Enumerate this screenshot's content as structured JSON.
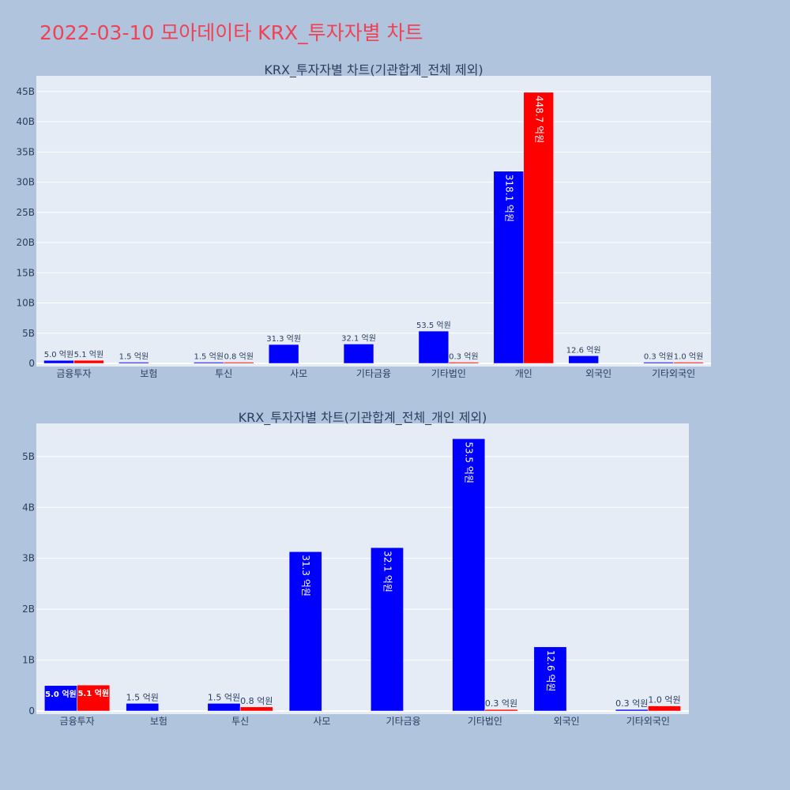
{
  "page": {
    "title": "2022-03-10 모아데이타 KRX_투자자별 차트"
  },
  "colors": {
    "background": "#b0c4de",
    "plot_background": "#e5ecf6",
    "title_color": "#ef4255",
    "buy_color": "#0000ff",
    "sell_color": "#ff0000"
  },
  "chart_data": [
    {
      "type": "bar",
      "title": "KRX_투자자별 차트(기관합계_전체 제외)",
      "categories": [
        "금융투자",
        "보험",
        "투신",
        "사모",
        "기타금융",
        "기타법인",
        "개인",
        "외국인",
        "기타외국인"
      ],
      "series": [
        {
          "color": "#0000ff",
          "values": [
            0.5,
            0.15,
            0.15,
            3.13,
            3.21,
            5.35,
            31.81,
            1.26,
            0.03
          ],
          "labels": [
            "5.0 억원",
            "1.5 억원",
            "1.5 억원",
            "31.3 억원",
            "32.1 억원",
            "53.5 억원",
            "318.1 억원",
            "12.6 억원",
            "0.3 억원"
          ]
        },
        {
          "color": "#ff0000",
          "values": [
            0.51,
            null,
            0.08,
            null,
            null,
            0.03,
            44.87,
            null,
            0.1
          ],
          "labels": [
            "5.1 억원",
            null,
            "0.8 억원",
            null,
            null,
            "0.3 억원",
            "448.7 억원",
            null,
            "1.0 억원"
          ]
        }
      ],
      "yticks": [
        "0",
        "5B",
        "10B",
        "15B",
        "20B",
        "25B",
        "30B",
        "35B",
        "40B",
        "45B"
      ],
      "ytick_values": [
        0,
        5,
        10,
        15,
        20,
        25,
        30,
        35,
        40,
        45
      ],
      "ylim": [
        0,
        47.6
      ],
      "grid": true
    },
    {
      "type": "bar",
      "title": "KRX_투자자별 차트(기관합계_전체_개인 제외)",
      "categories": [
        "금융투자",
        "보험",
        "투신",
        "사모",
        "기타금융",
        "기타법인",
        "외국인",
        "기타외국인"
      ],
      "series": [
        {
          "color": "#0000ff",
          "values": [
            0.5,
            0.15,
            0.15,
            3.13,
            3.21,
            5.35,
            1.26,
            0.03
          ],
          "labels": [
            "5.0 억원",
            "1.5 억원",
            "1.5 억원",
            "31.3 억원",
            "32.1 억원",
            "53.5 억원",
            "12.6 억원",
            "0.3 억원"
          ]
        },
        {
          "color": "#ff0000",
          "values": [
            0.51,
            null,
            0.08,
            null,
            null,
            0.03,
            null,
            0.1
          ],
          "labels": [
            "5.1 억원",
            null,
            "0.8 억원",
            null,
            null,
            "0.3 억원",
            null,
            "1.0 억원"
          ]
        }
      ],
      "yticks": [
        "0",
        "1B",
        "2B",
        "3B",
        "4B",
        "5B"
      ],
      "ytick_values": [
        0,
        1,
        2,
        3,
        4,
        5
      ],
      "ylim": [
        0,
        5.65
      ],
      "grid": true
    }
  ]
}
